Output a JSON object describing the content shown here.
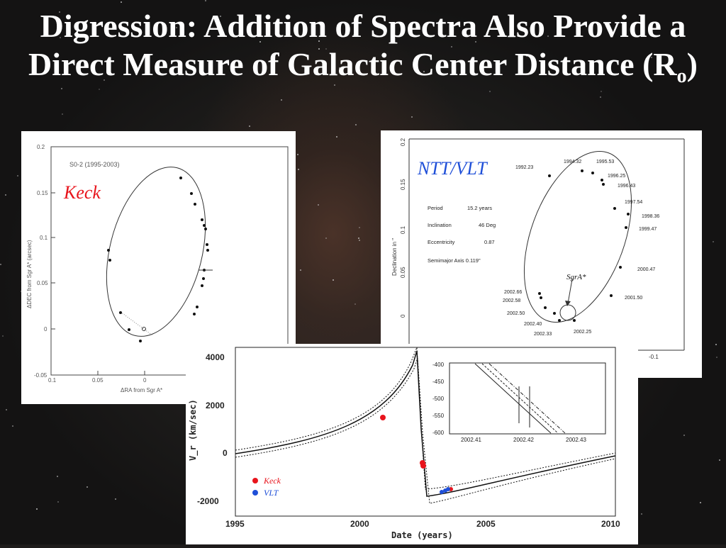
{
  "slide": {
    "title_main": "Digression:  Addition of Spectra Also Provide a Direct Measure of Galactic Center Distance (R",
    "title_subscript": "o",
    "title_end": ")"
  },
  "keck_panel": {
    "label": "Keck",
    "plot_title": "S0-2 (1995-2003)",
    "ylabel": "ΔDEC from Sgr A* (arcsec)",
    "xlabel": "ΔRA from Sgr A*",
    "y_ticks": [
      "0.2",
      "0.15",
      "0.1",
      "0.05",
      "0",
      "-0.05"
    ],
    "x_ticks": [
      "0.1",
      "0.05",
      "0"
    ]
  },
  "ntt_panel": {
    "label": "NTT/VLT",
    "ylabel": "Declination in \"",
    "y_ticks": [
      "0.2",
      "0.15",
      "0.1",
      "0.05",
      "0"
    ],
    "x_tick_partial": "-0.1",
    "params": [
      {
        "name": "Period",
        "value": "15.2 years"
      },
      {
        "name": "Inclination",
        "value": "46 Deg"
      },
      {
        "name": "Eccentricity",
        "value": "0.87"
      },
      {
        "name": "Semimajor Axis 0.119\"",
        "value": ""
      }
    ],
    "sgr_label": "SgrA*",
    "epochs": [
      "1992.23",
      "1994.32",
      "1995.53",
      "1996.25",
      "1996.43",
      "1997.54",
      "1998.36",
      "1999.47",
      "2000.47",
      "2001.50",
      "2002.25",
      "2002.33",
      "2002.40",
      "2002.50",
      "2002.58",
      "2002.66"
    ]
  },
  "velocity_panel": {
    "ylabel": "V_r (km/sec)",
    "xlabel": "Date (years)",
    "y_ticks": [
      "4000",
      "2000",
      "0",
      "-2000"
    ],
    "x_ticks": [
      "1995",
      "2000",
      "2005",
      "2010"
    ],
    "legend": [
      {
        "name": "Keck",
        "color": "#e8141c"
      },
      {
        "name": "VLT",
        "color": "#1f4fd8"
      }
    ],
    "inset_y_ticks": [
      "-400",
      "-450",
      "-500",
      "-550",
      "-600"
    ],
    "inset_x_ticks": [
      "2002.41",
      "2002.42",
      "2002.43"
    ]
  }
}
